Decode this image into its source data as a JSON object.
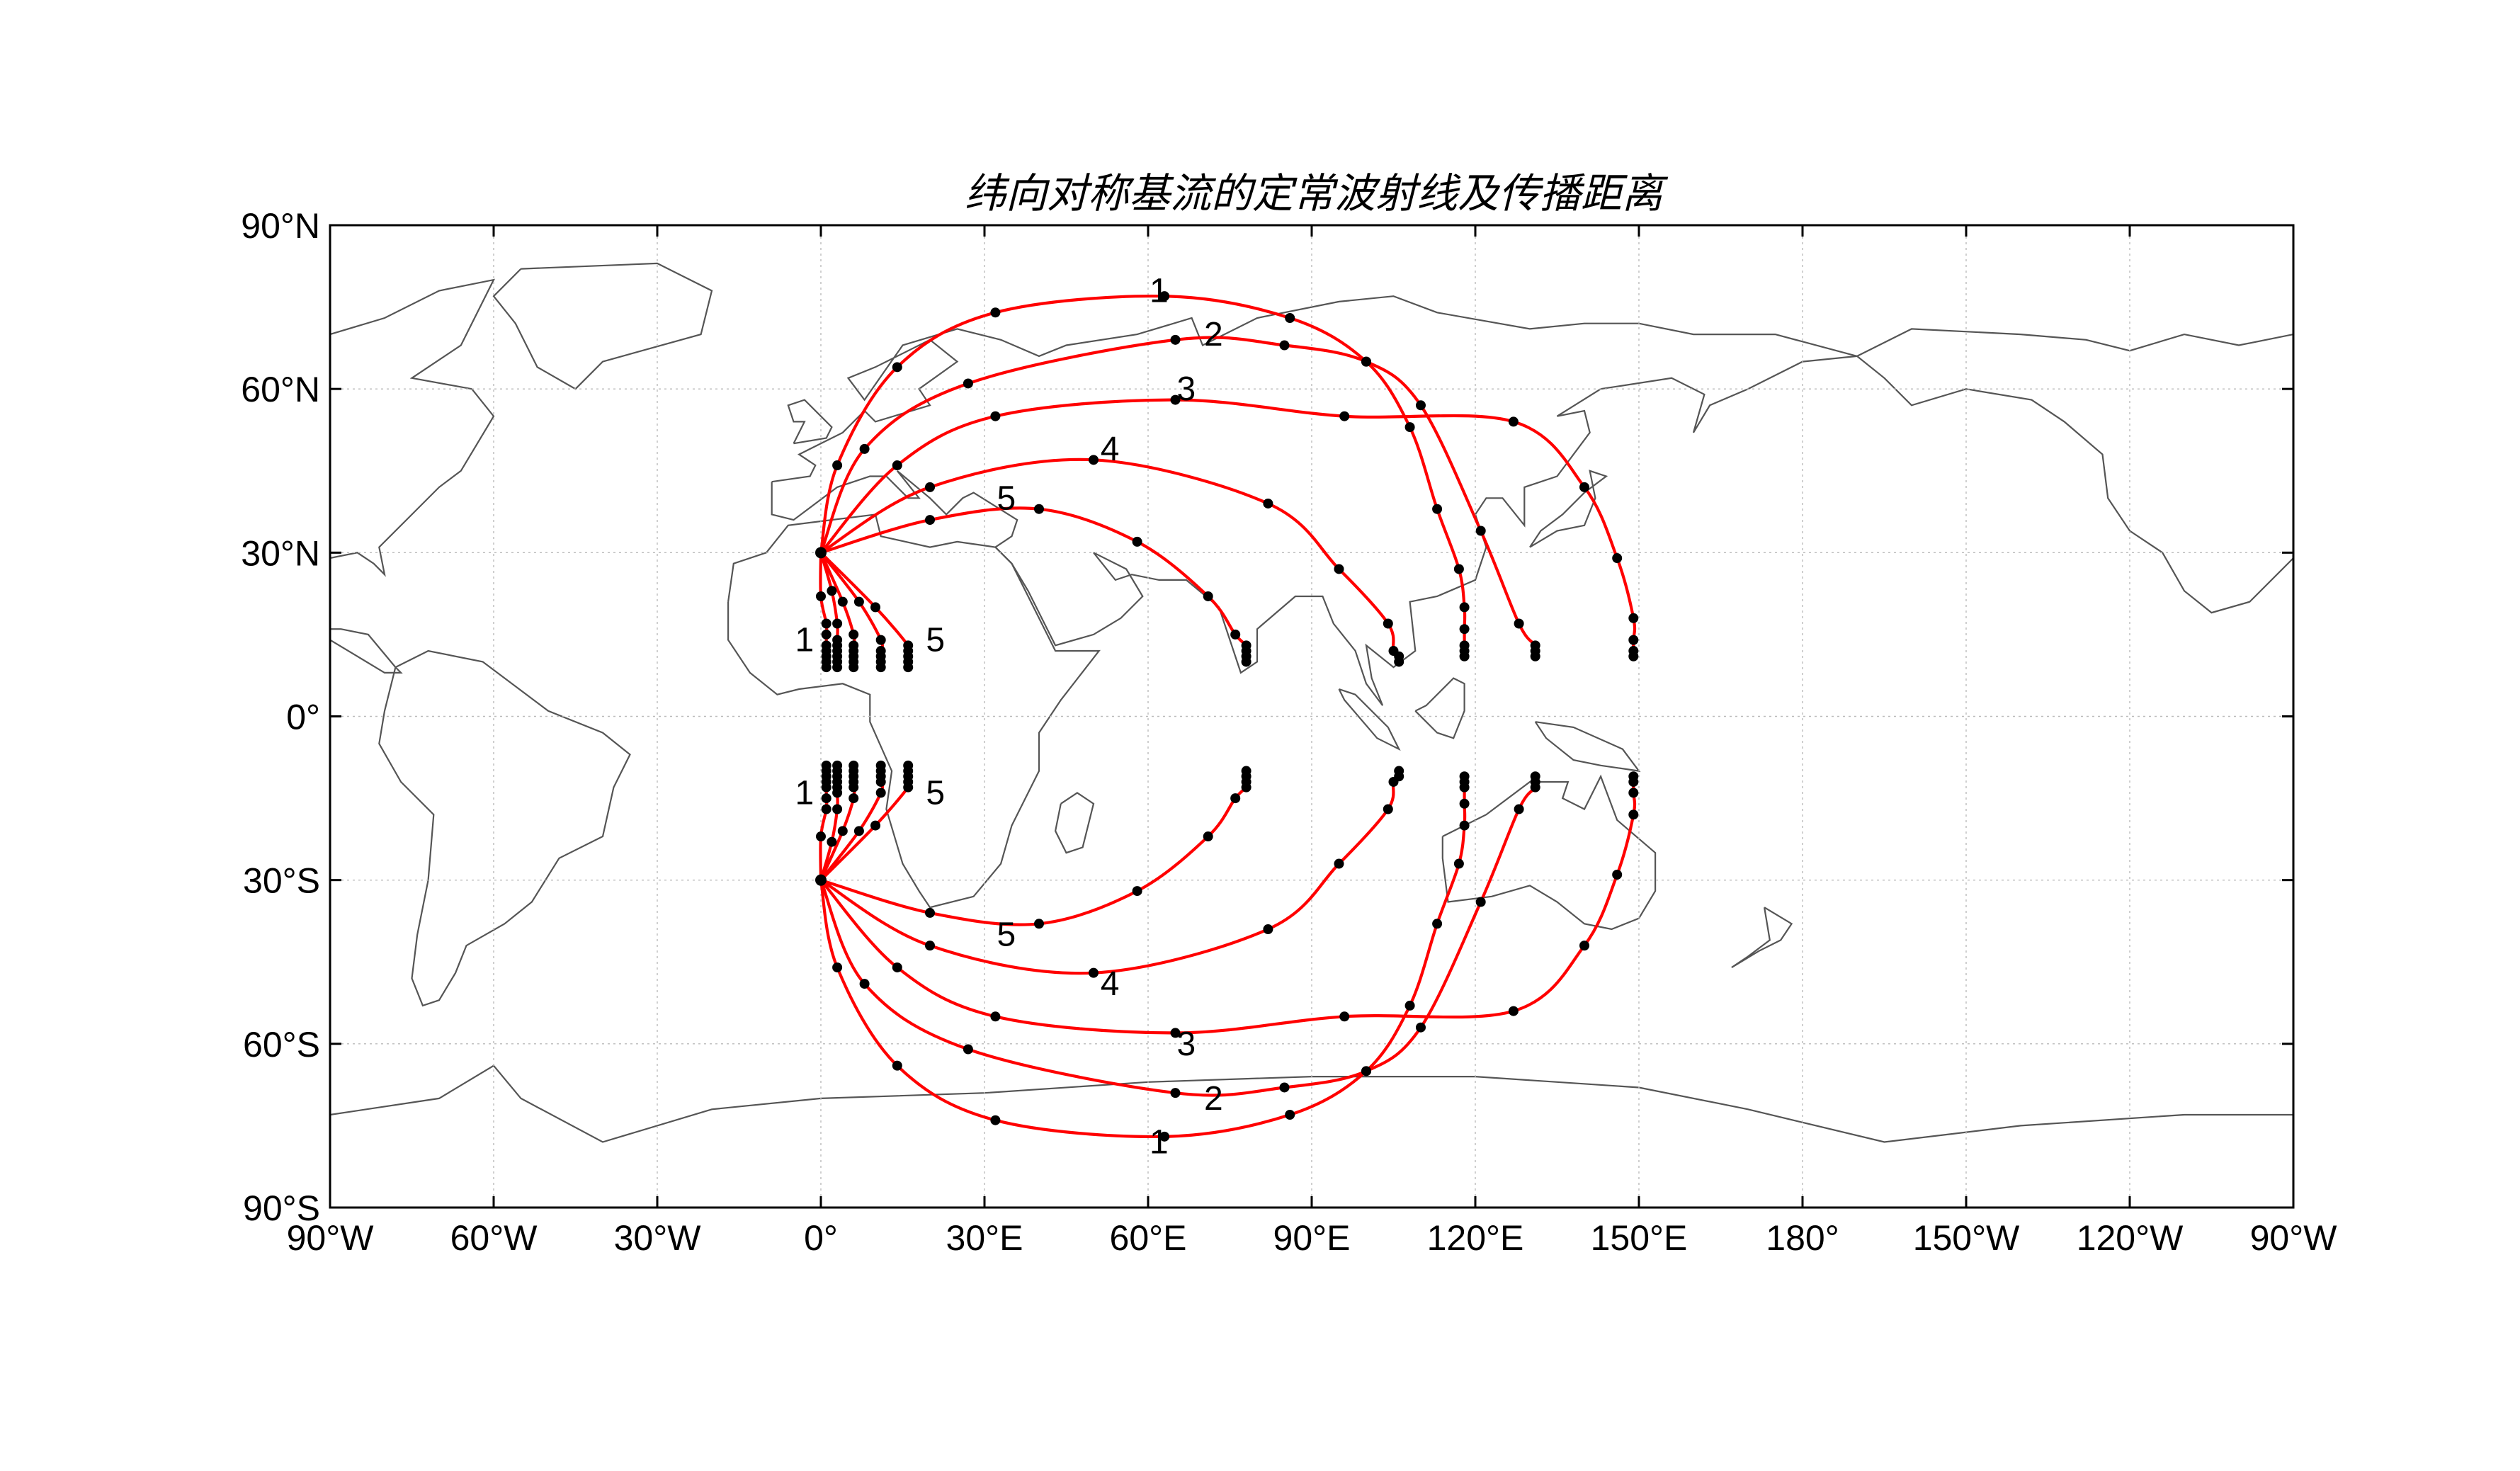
{
  "chart_data": {
    "type": "map-ray-paths",
    "title": "纬向对称基流的定常波射线及传播距离",
    "projection": "equirectangular",
    "lon_range": [
      -90,
      270
    ],
    "lat_range": [
      -90,
      90
    ],
    "grid": true,
    "x_ticks": [
      {
        "lon": -90,
        "label": "90°W"
      },
      {
        "lon": -60,
        "label": "60°W"
      },
      {
        "lon": -30,
        "label": "30°W"
      },
      {
        "lon": 0,
        "label": "0°"
      },
      {
        "lon": 30,
        "label": "30°E"
      },
      {
        "lon": 60,
        "label": "60°E"
      },
      {
        "lon": 90,
        "label": "90°E"
      },
      {
        "lon": 120,
        "label": "120°E"
      },
      {
        "lon": 150,
        "label": "150°E"
      },
      {
        "lon": 180,
        "label": "180°"
      },
      {
        "lon": 210,
        "label": "150°W"
      },
      {
        "lon": 240,
        "label": "120°W"
      },
      {
        "lon": 270,
        "label": "90°W"
      }
    ],
    "y_ticks": [
      {
        "lat": 90,
        "label": "90°N"
      },
      {
        "lat": 60,
        "label": "60°N"
      },
      {
        "lat": 30,
        "label": "30°N"
      },
      {
        "lat": 0,
        "label": "0°"
      },
      {
        "lat": -30,
        "label": "30°S"
      },
      {
        "lat": -60,
        "label": "60°S"
      },
      {
        "lat": -90,
        "label": "90°S"
      }
    ],
    "source": {
      "lon": 0,
      "lat": 30
    },
    "source_south": {
      "lon": 0,
      "lat": -30
    },
    "ray_color": "#ff0000",
    "point_color": "#000000",
    "coast_color": "#555555",
    "grid_color": "#bbbbbb",
    "rays_north": [
      {
        "name": "1",
        "label_pos": [
          62,
          78
        ],
        "points": [
          [
            0,
            30
          ],
          [
            3,
            46
          ],
          [
            14,
            64
          ],
          [
            32,
            74
          ],
          [
            63,
            77
          ],
          [
            86,
            73
          ],
          [
            100,
            65
          ],
          [
            108,
            53
          ],
          [
            113,
            38
          ],
          [
            117,
            27
          ],
          [
            118,
            20
          ],
          [
            118,
            16
          ],
          [
            118,
            13
          ],
          [
            118,
            12
          ],
          [
            118,
            11
          ]
        ]
      },
      {
        "name": "2",
        "label_pos": [
          72,
          70
        ],
        "points": [
          [
            0,
            30
          ],
          [
            8,
            49
          ],
          [
            27,
            61
          ],
          [
            65,
            69
          ],
          [
            85,
            68
          ],
          [
            100,
            65
          ],
          [
            110,
            57
          ],
          [
            121,
            34
          ],
          [
            128,
            17
          ],
          [
            131,
            13
          ],
          [
            131,
            12
          ],
          [
            131,
            11
          ]
        ]
      },
      {
        "name": "3",
        "label_pos": [
          67,
          60
        ],
        "points": [
          [
            0,
            30
          ],
          [
            14,
            46
          ],
          [
            32,
            55
          ],
          [
            65,
            58
          ],
          [
            96,
            55
          ],
          [
            127,
            54
          ],
          [
            140,
            42
          ],
          [
            146,
            29
          ],
          [
            149,
            18
          ],
          [
            149,
            14
          ],
          [
            149,
            12
          ],
          [
            149,
            11
          ]
        ]
      },
      {
        "name": "4",
        "label_pos": [
          53,
          49
        ],
        "points": [
          [
            0,
            30
          ],
          [
            20,
            42
          ],
          [
            50,
            47
          ],
          [
            82,
            39
          ],
          [
            95,
            27
          ],
          [
            104,
            17
          ],
          [
            105,
            12
          ],
          [
            106,
            11
          ],
          [
            106,
            10
          ]
        ]
      },
      {
        "name": "5",
        "label_pos": [
          34,
          40
        ],
        "points": [
          [
            0,
            30
          ],
          [
            20,
            36
          ],
          [
            40,
            38
          ],
          [
            58,
            32
          ],
          [
            71,
            22
          ],
          [
            76,
            15
          ],
          [
            78,
            13
          ],
          [
            78,
            12
          ],
          [
            78,
            11
          ],
          [
            78,
            10
          ]
        ]
      }
    ],
    "rays_north_near": [
      {
        "name": "1",
        "label_pos": [
          -3,
          14
        ],
        "points": [
          [
            0,
            30
          ],
          [
            0,
            22
          ],
          [
            1,
            17
          ],
          [
            1,
            15
          ],
          [
            1,
            13
          ],
          [
            1,
            12
          ],
          [
            1,
            11
          ],
          [
            1,
            10
          ],
          [
            1,
            9
          ]
        ]
      },
      {
        "name": "",
        "points": [
          [
            0,
            30
          ],
          [
            2,
            23
          ],
          [
            3,
            17
          ],
          [
            3,
            14
          ],
          [
            3,
            13
          ],
          [
            3,
            12
          ],
          [
            3,
            11
          ],
          [
            3,
            10
          ],
          [
            3,
            9
          ]
        ]
      },
      {
        "name": "",
        "points": [
          [
            0,
            30
          ],
          [
            4,
            21
          ],
          [
            6,
            15
          ],
          [
            6,
            13
          ],
          [
            6,
            12
          ],
          [
            6,
            11
          ],
          [
            6,
            10
          ],
          [
            6,
            9
          ]
        ]
      },
      {
        "name": "",
        "points": [
          [
            0,
            30
          ],
          [
            7,
            21
          ],
          [
            11,
            14
          ],
          [
            11,
            12
          ],
          [
            11,
            11
          ],
          [
            11,
            10
          ],
          [
            11,
            9
          ]
        ]
      },
      {
        "name": "5",
        "label_pos": [
          21,
          14
        ],
        "points": [
          [
            0,
            30
          ],
          [
            10,
            20
          ],
          [
            16,
            13
          ],
          [
            16,
            12
          ],
          [
            16,
            11
          ],
          [
            16,
            10
          ],
          [
            16,
            9
          ]
        ]
      }
    ],
    "annotations_north": [
      "1",
      "2",
      "3",
      "4",
      "5",
      "1",
      "5"
    ],
    "annotations_south": [
      "1",
      "2",
      "3",
      "4",
      "5",
      "1",
      "5"
    ]
  }
}
